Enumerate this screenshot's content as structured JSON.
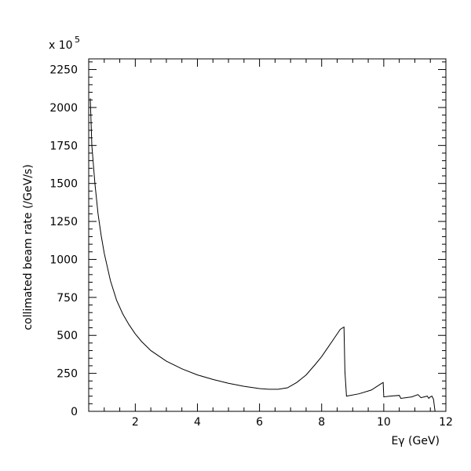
{
  "chart_data": {
    "type": "line",
    "title": "",
    "xlabel": "Eγ (GeV)",
    "ylabel": "collimated beam rate (/GeV/s)",
    "multiplier_text": "x 10",
    "multiplier_exponent": "5",
    "xlim": [
      0.5,
      12
    ],
    "ylim": [
      0,
      2320
    ],
    "xticks": [
      2,
      4,
      6,
      8,
      10,
      12
    ],
    "yticks": [
      0,
      250,
      500,
      750,
      1000,
      1250,
      1500,
      1750,
      2000,
      2250
    ],
    "grid": false,
    "line_color": "#000000",
    "series": [
      {
        "x": [
          0.55,
          0.6,
          0.7,
          0.8,
          0.9,
          1.0,
          1.2,
          1.4,
          1.6,
          1.8,
          2.0,
          2.2,
          2.5,
          3.0,
          3.5,
          4.0,
          4.5,
          5.0,
          5.5,
          6.0,
          6.3,
          6.6,
          6.9,
          7.2,
          7.5,
          7.8,
          8.0,
          8.2,
          8.4,
          8.6,
          8.72,
          8.75,
          8.8,
          9.2,
          9.6,
          9.9,
          9.98,
          10.0,
          10.2,
          10.5,
          10.55,
          10.9,
          11.1,
          11.2,
          11.4,
          11.45,
          11.5,
          11.55,
          11.6,
          11.65
        ],
        "y": [
          2060,
          1750,
          1500,
          1300,
          1160,
          1040,
          860,
          730,
          640,
          570,
          510,
          460,
          400,
          330,
          280,
          240,
          210,
          185,
          165,
          150,
          145,
          145,
          155,
          190,
          240,
          310,
          360,
          420,
          480,
          540,
          555,
          260,
          100,
          115,
          140,
          180,
          190,
          95,
          100,
          105,
          85,
          95,
          110,
          90,
          100,
          85,
          95,
          100,
          80,
          0
        ]
      }
    ]
  }
}
